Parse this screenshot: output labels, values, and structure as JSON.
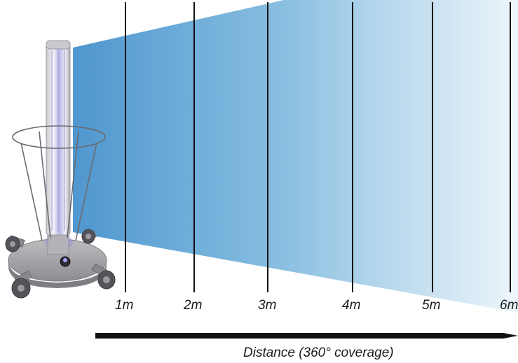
{
  "diagram": {
    "distance_markers": [
      "1m",
      "2m",
      "3m",
      "4m",
      "5m",
      "6m"
    ],
    "axis_caption": "Distance (360° coverage)",
    "beam_color_near": "#4f97cf",
    "beam_color_far": "#eef6fb",
    "device_brand": "UV-C disinfection unit"
  }
}
